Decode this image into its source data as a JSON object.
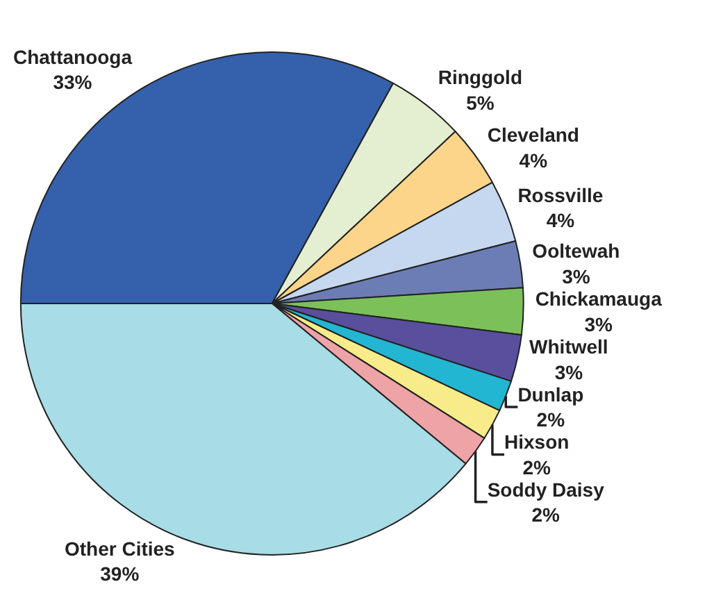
{
  "chart_data": {
    "type": "pie",
    "categories": [
      "Chattanooga",
      "Ringgold",
      "Cleveland",
      "Rossville",
      "Ooltewah",
      "Chickamauga",
      "Whitwell",
      "Dunlap",
      "Hixson",
      "Soddy Daisy",
      "Other Cities"
    ],
    "values": [
      33,
      5,
      4,
      4,
      3,
      3,
      3,
      2,
      2,
      2,
      39
    ],
    "value_labels": [
      "33%",
      "5%",
      "4%",
      "4%",
      "3%",
      "3%",
      "3%",
      "2%",
      "2%",
      "2%",
      "39%"
    ],
    "colors": [
      "#3560ac",
      "#e4eed0",
      "#fdd58a",
      "#c5d8ef",
      "#6c7db5",
      "#7cc05a",
      "#5a4f9c",
      "#22b6d2",
      "#f8ec8a",
      "#eea3a7",
      "#a8dce6"
    ],
    "legend": false
  }
}
